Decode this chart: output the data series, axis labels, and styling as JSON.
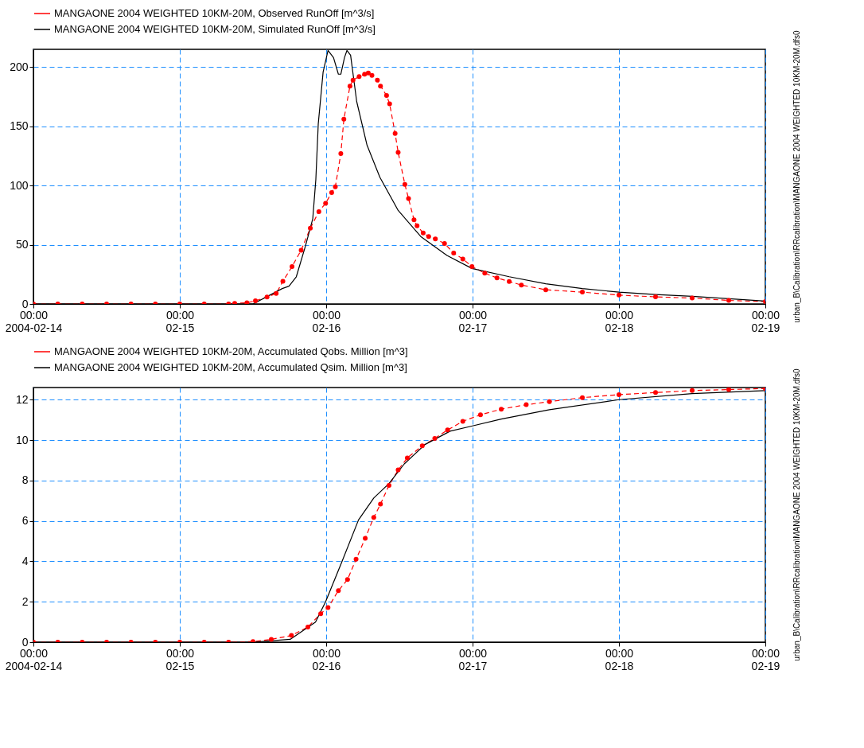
{
  "chart_data": [
    {
      "type": "line",
      "xlim": [
        "2004-02-14T00:00",
        "2004-02-19T00:00"
      ],
      "ylim": [
        0,
        215
      ],
      "yticks": [
        0,
        50,
        100,
        150,
        200
      ],
      "xticks": [
        {
          "value": "2004-02-14T00:00",
          "label": "00:00\n2004-02-14"
        },
        {
          "value": "2004-02-15T00:00",
          "label": "00:00\n02-15"
        },
        {
          "value": "2004-02-16T00:00",
          "label": "00:00\n02-16"
        },
        {
          "value": "2004-02-17T00:00",
          "label": "00:00\n02-17"
        },
        {
          "value": "2004-02-18T00:00",
          "label": "00:00\n02-18"
        },
        {
          "value": "2004-02-19T00:00",
          "label": "00:00\n02-19"
        }
      ],
      "grid": true,
      "legend": "top",
      "annotations": [
        "urban_B\\Calibration\\RRcalibration\\MANGAONE 2004 WEIGHTED 10KM-20M.dfs0"
      ],
      "series": [
        {
          "name": "MANGAONE 2004 WEIGHTED 10KM-20M, Observed RunOff [m^3/s]",
          "color": "#ff0000",
          "marker": "circle",
          "line_style": "dashed",
          "x": [
            "2004-02-14T00:00",
            "2004-02-14T04:00",
            "2004-02-14T08:00",
            "2004-02-14T12:00",
            "2004-02-14T16:00",
            "2004-02-14T20:00",
            "2004-02-15T00:00",
            "2004-02-15T04:00",
            "2004-02-15T08:00",
            "2004-02-15T09:00",
            "2004-02-15T11:00",
            "2004-02-15T12:24",
            "2004-02-15T14:18",
            "2004-02-15T15:48",
            "2004-02-15T16:54",
            "2004-02-15T18:24",
            "2004-02-15T19:54",
            "2004-02-15T21:24",
            "2004-02-15T22:48",
            "2004-02-15T23:54",
            "2004-02-16T00:54",
            "2004-02-16T01:30",
            "2004-02-16T02:24",
            "2004-02-16T02:54",
            "2004-02-16T03:54",
            "2004-02-16T04:24",
            "2004-02-16T05:24",
            "2004-02-16T06:18",
            "2004-02-16T06:54",
            "2004-02-16T07:30",
            "2004-02-16T08:24",
            "2004-02-16T08:54",
            "2004-02-16T09:54",
            "2004-02-16T10:24",
            "2004-02-16T11:18",
            "2004-02-16T11:48",
            "2004-02-16T12:54",
            "2004-02-16T13:30",
            "2004-02-16T14:24",
            "2004-02-16T14:54",
            "2004-02-16T15:54",
            "2004-02-16T16:48",
            "2004-02-16T17:54",
            "2004-02-16T19:24",
            "2004-02-16T20:54",
            "2004-02-16T22:24",
            "2004-02-16T23:54",
            "2004-02-17T02:00",
            "2004-02-17T04:00",
            "2004-02-17T06:00",
            "2004-02-17T08:00",
            "2004-02-17T12:00",
            "2004-02-17T18:00",
            "2004-02-18T00:00",
            "2004-02-18T06:00",
            "2004-02-18T12:00",
            "2004-02-18T18:00",
            "2004-02-19T00:00"
          ],
          "values": [
            0,
            0,
            0,
            0,
            0,
            0,
            0,
            0,
            0,
            0.5,
            1,
            2.7,
            5.8,
            8.9,
            19.2,
            31.6,
            45.4,
            64,
            78,
            85,
            94,
            99,
            127,
            156,
            184,
            189,
            192,
            194,
            195,
            193,
            189,
            184,
            176,
            169,
            144,
            128,
            101,
            89,
            71,
            66,
            60,
            57,
            55,
            51,
            43,
            38,
            31.6,
            26,
            22,
            19,
            16,
            12,
            10,
            7.5,
            6,
            5,
            3,
            2
          ]
        },
        {
          "name": "MANGAONE 2004 WEIGHTED 10KM-20M, Simulated RunOff [m^3/s]",
          "color": "#000000",
          "marker": "none",
          "line_style": "solid",
          "x": [
            "2004-02-14T00:00",
            "2004-02-15T12:00",
            "2004-02-15T16:48",
            "2004-02-15T17:54",
            "2004-02-15T19:06",
            "2004-02-15T20:36",
            "2004-02-15T21:48",
            "2004-02-15T22:18",
            "2004-02-15T22:42",
            "2004-02-15T23:30",
            "2004-02-16T00:18",
            "2004-02-16T01:12",
            "2004-02-16T02:00",
            "2004-02-16T02:24",
            "2004-02-16T03:00",
            "2004-02-16T03:24",
            "2004-02-16T04:00",
            "2004-02-16T05:00",
            "2004-02-16T06:42",
            "2004-02-16T08:48",
            "2004-02-16T11:48",
            "2004-02-16T15:30",
            "2004-02-16T19:48",
            "2004-02-16T23:54",
            "2004-02-17T06:00",
            "2004-02-17T12:00",
            "2004-02-17T18:00",
            "2004-02-18T00:00",
            "2004-02-18T06:00",
            "2004-02-18T12:00",
            "2004-02-18T18:00",
            "2004-02-19T00:00"
          ],
          "values": [
            0,
            0,
            13,
            15,
            23,
            49,
            72,
            105,
            152,
            196,
            214,
            208,
            194,
            194,
            208,
            214,
            210,
            171,
            134,
            107,
            79,
            57,
            41,
            30,
            23,
            17,
            13,
            10,
            8,
            6.5,
            4.5,
            2.5
          ]
        }
      ]
    },
    {
      "type": "line",
      "xlim": [
        "2004-02-14T00:00",
        "2004-02-19T00:00"
      ],
      "ylim": [
        0,
        12.6
      ],
      "yticks": [
        0,
        2,
        4,
        6,
        8,
        10,
        12
      ],
      "xticks": [
        {
          "value": "2004-02-14T00:00",
          "label": "00:00\n2004-02-14"
        },
        {
          "value": "2004-02-15T00:00",
          "label": "00:00\n02-15"
        },
        {
          "value": "2004-02-16T00:00",
          "label": "00:00\n02-16"
        },
        {
          "value": "2004-02-17T00:00",
          "label": "00:00\n02-17"
        },
        {
          "value": "2004-02-18T00:00",
          "label": "00:00\n02-18"
        },
        {
          "value": "2004-02-19T00:00",
          "label": "00:00\n02-19"
        }
      ],
      "grid": true,
      "legend": "top",
      "annotations": [
        "urban_B\\Calibration\\RRcalibration\\MANGAONE 2004 WEIGHTED 10KM-20M.dfs0"
      ],
      "series": [
        {
          "name": "MANGAONE 2004 WEIGHTED 10KM-20M, Accumulated Qobs. Million [m^3]",
          "color": "#ff0000",
          "marker": "circle",
          "line_style": "dashed",
          "x": [
            "2004-02-14T00:00",
            "2004-02-14T04:00",
            "2004-02-14T08:00",
            "2004-02-14T12:00",
            "2004-02-14T16:00",
            "2004-02-14T20:00",
            "2004-02-15T00:00",
            "2004-02-15T04:00",
            "2004-02-15T08:00",
            "2004-02-15T12:00",
            "2004-02-15T15:00",
            "2004-02-15T18:18",
            "2004-02-15T21:00",
            "2004-02-15T23:06",
            "2004-02-16T00:18",
            "2004-02-16T02:00",
            "2004-02-16T03:30",
            "2004-02-16T04:54",
            "2004-02-16T06:24",
            "2004-02-16T07:48",
            "2004-02-16T08:54",
            "2004-02-16T10:18",
            "2004-02-16T11:48",
            "2004-02-16T13:18",
            "2004-02-16T15:45",
            "2004-02-16T17:48",
            "2004-02-16T19:54",
            "2004-02-16T22:24",
            "2004-02-17T01:18",
            "2004-02-17T04:42",
            "2004-02-17T08:48",
            "2004-02-17T12:36",
            "2004-02-17T18:00",
            "2004-02-18T00:00",
            "2004-02-18T06:00",
            "2004-02-18T12:00",
            "2004-02-18T18:00",
            "2004-02-19T00:00"
          ],
          "values": [
            0,
            0,
            0,
            0,
            0,
            0,
            0,
            0,
            0,
            0.03,
            0.14,
            0.33,
            0.75,
            1.41,
            1.71,
            2.55,
            3.1,
            4.1,
            5.14,
            6.17,
            6.83,
            7.76,
            8.52,
            9.12,
            9.72,
            10.08,
            10.5,
            10.93,
            11.25,
            11.53,
            11.75,
            11.9,
            12.1,
            12.25,
            12.35,
            12.45,
            12.5,
            12.55
          ]
        },
        {
          "name": "MANGAONE 2004 WEIGHTED 10KM-20M, Accumulated Qsim. Million [m^3]",
          "color": "#000000",
          "marker": "none",
          "line_style": "solid",
          "x": [
            "2004-02-14T00:00",
            "2004-02-15T12:00",
            "2004-02-15T18:06",
            "2004-02-15T22:15",
            "2004-02-15T23:54",
            "2004-02-16T02:36",
            "2004-02-16T05:18",
            "2004-02-16T07:48",
            "2004-02-16T10:18",
            "2004-02-16T12:48",
            "2004-02-16T16:12",
            "2004-02-16T20:18",
            "2004-02-16T23:42",
            "2004-02-17T04:42",
            "2004-02-17T12:36",
            "2004-02-18T00:00",
            "2004-02-18T12:00",
            "2004-02-19T00:00"
          ],
          "values": [
            0,
            0,
            0.14,
            0.99,
            2.0,
            4.0,
            6.05,
            7.13,
            7.85,
            8.82,
            9.78,
            10.44,
            10.68,
            11.04,
            11.5,
            12.0,
            12.3,
            12.45
          ]
        }
      ]
    }
  ]
}
